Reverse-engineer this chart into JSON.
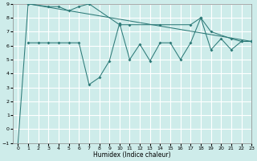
{
  "xlabel": "Humidex (Indice chaleur)",
  "bg_color": "#ceecea",
  "grid_color": "#ffffff",
  "line_color": "#2d7a78",
  "xlim": [
    -0.5,
    23
  ],
  "ylim": [
    -1,
    9
  ],
  "yticks": [
    -1,
    0,
    1,
    2,
    3,
    4,
    5,
    6,
    7,
    8,
    9
  ],
  "xticks": [
    0,
    1,
    2,
    3,
    4,
    5,
    6,
    7,
    8,
    9,
    10,
    11,
    12,
    13,
    14,
    15,
    16,
    17,
    18,
    19,
    20,
    21,
    22,
    23
  ],
  "series": [
    {
      "x": [
        0,
        1,
        23
      ],
      "y": [
        -1,
        9,
        6.3
      ],
      "has_markers": false
    },
    {
      "x": [
        1,
        3,
        4,
        5,
        6,
        7,
        10,
        11,
        14,
        17,
        18,
        19,
        21,
        22,
        23
      ],
      "y": [
        9,
        8.8,
        8.8,
        8.5,
        8.8,
        9.0,
        7.5,
        7.5,
        7.5,
        7.5,
        8.0,
        7.0,
        6.5,
        6.3,
        6.3
      ],
      "has_markers": true
    },
    {
      "x": [
        1,
        2,
        3,
        4,
        5,
        6,
        7,
        8,
        9,
        10,
        11,
        12,
        13,
        14,
        15,
        16,
        17,
        18,
        19,
        20,
        21,
        22,
        23
      ],
      "y": [
        6.2,
        6.2,
        6.2,
        6.2,
        6.2,
        6.2,
        3.2,
        3.7,
        4.9,
        7.6,
        5.0,
        6.1,
        4.9,
        6.2,
        6.2,
        5.0,
        6.2,
        8.0,
        5.7,
        6.5,
        5.7,
        6.3,
        6.3
      ],
      "has_markers": true
    }
  ]
}
